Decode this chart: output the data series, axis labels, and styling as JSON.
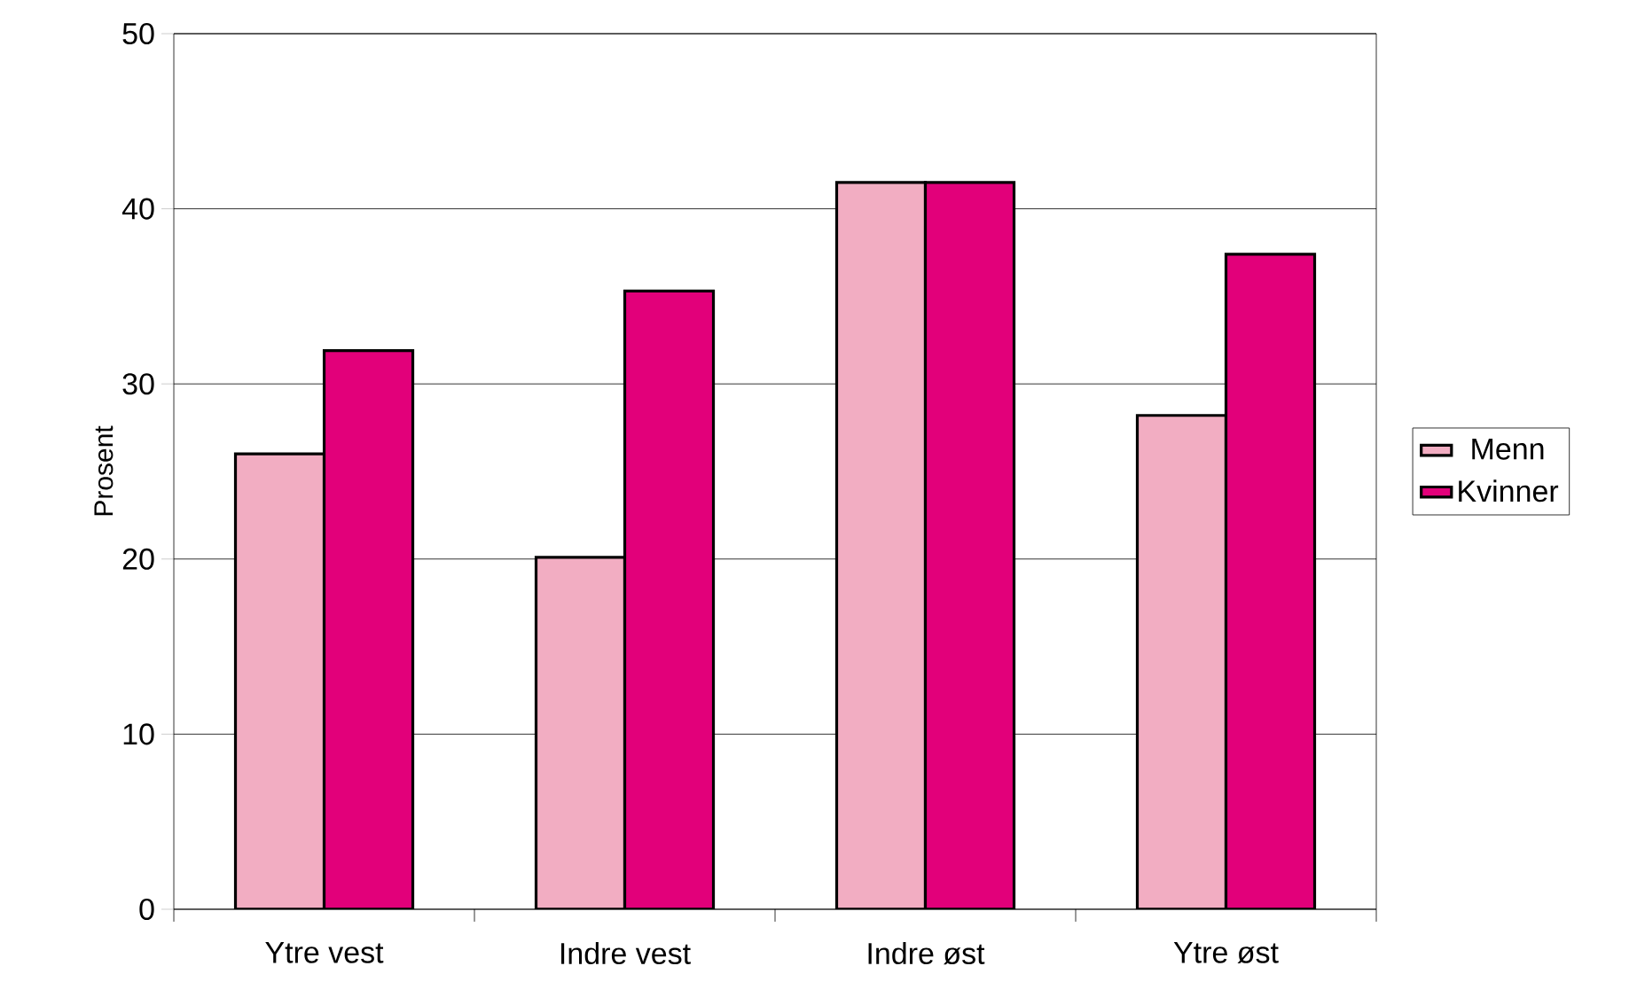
{
  "chart_data": {
    "type": "bar",
    "ylabel": "Prosent",
    "categories": [
      "Ytre vest",
      "Indre vest",
      "Indre øst",
      "Ytre øst"
    ],
    "series": [
      {
        "name": "Menn",
        "color": "#f2adc2",
        "values": [
          26.0,
          20.1,
          41.5,
          28.2
        ]
      },
      {
        "name": "Kvinner",
        "color": "#e2007a",
        "values": [
          31.9,
          35.3,
          41.5,
          37.4
        ]
      }
    ],
    "ylim": [
      0,
      50
    ],
    "yticks": [
      0,
      10,
      20,
      30,
      40,
      50
    ],
    "grid": "y",
    "legend": "right"
  }
}
